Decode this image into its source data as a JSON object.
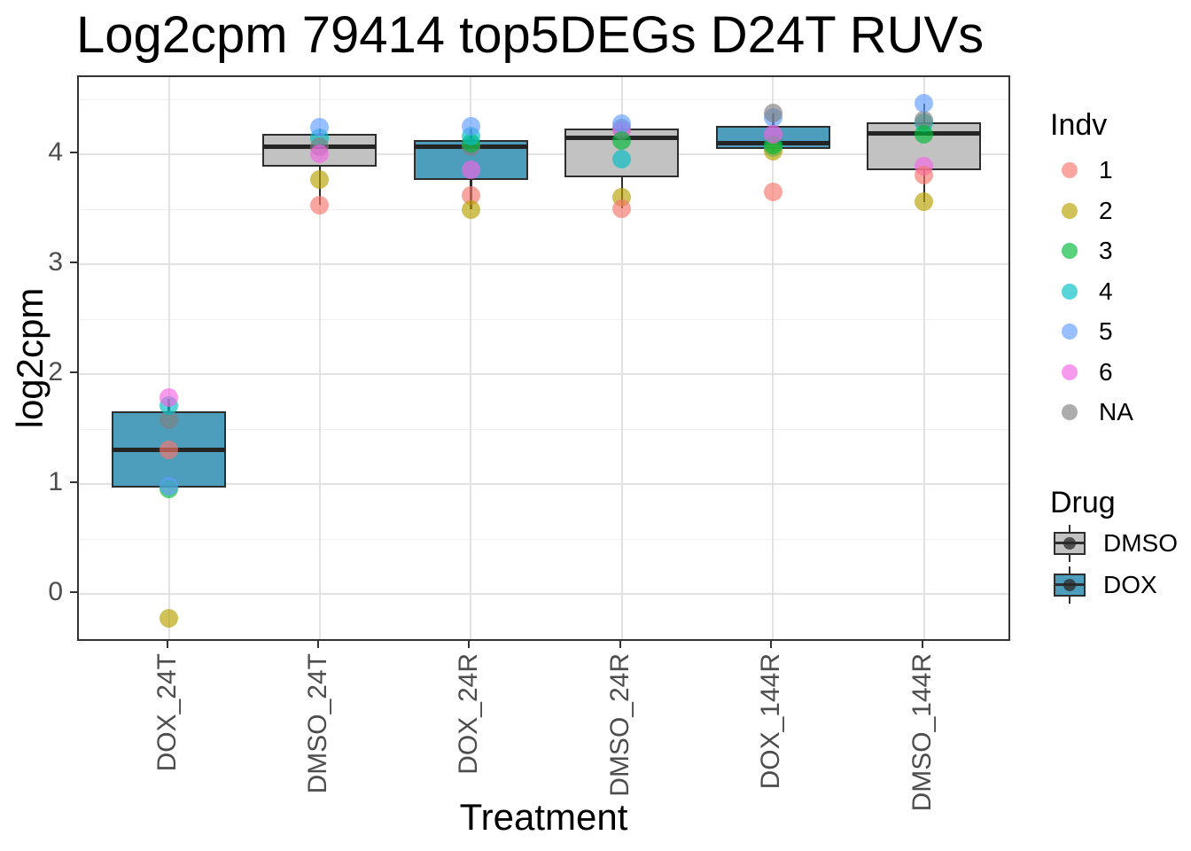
{
  "title": "Log2cpm 79414 top5DEGs D24T RUVs",
  "axes": {
    "x_title": "Treatment",
    "y_title": "log2cpm",
    "y_ticks": [
      0,
      1,
      2,
      3,
      4
    ],
    "y_minor_ticks": [
      0.5,
      1.5,
      2.5,
      3.5,
      4.5
    ],
    "y_range": [
      -0.44,
      4.7
    ],
    "categories": [
      "DOX_24T",
      "DMSO_24T",
      "DOX_24R",
      "DMSO_24R",
      "DOX_144R",
      "DMSO_144R"
    ]
  },
  "colors": {
    "dox_fill": "#4d9ebc",
    "dmso_fill": "#c2c2c2",
    "box_border": "#2e2e2e",
    "panel_border": "#333333",
    "grid_major": "#e2e2e2",
    "grid_minor": "#f0f0f0",
    "tick_label": "#4d4d4d",
    "indv": {
      "1": "rgba(248,118,109,0.65)",
      "2": "rgba(183,159,0,0.65)",
      "3": "rgba(0,186,56,0.65)",
      "4": "rgba(0,191,196,0.65)",
      "5": "rgba(97,156,255,0.65)",
      "6": "rgba(245,100,227,0.65)",
      "NA": "rgba(128,128,128,0.65)"
    }
  },
  "chart_data": {
    "type": "boxplot",
    "title": "Log2cpm 79414 top5DEGs D24T RUVs",
    "xlabel": "Treatment",
    "ylabel": "log2cpm",
    "ylim": [
      -0.44,
      4.7
    ],
    "grid": true,
    "legend_position": "right",
    "categories": [
      "DOX_24T",
      "DMSO_24T",
      "DOX_24R",
      "DMSO_24R",
      "DOX_144R",
      "DMSO_144R"
    ],
    "groups": [
      {
        "category": "DOX_24T",
        "drug": "DOX",
        "q1": 0.97,
        "median": 1.31,
        "q3": 1.66,
        "whisker_low": null,
        "whisker_high": 1.78,
        "points": [
          {
            "indv": "NA",
            "value": 1.59
          },
          {
            "indv": "4",
            "value": 1.72
          },
          {
            "indv": "6",
            "value": 1.79
          },
          {
            "indv": "3",
            "value": 0.96
          },
          {
            "indv": "5",
            "value": 0.98
          },
          {
            "indv": "1",
            "value": 1.31
          },
          {
            "indv": "2",
            "value": -0.22
          }
        ]
      },
      {
        "category": "DMSO_24T",
        "drug": "DMSO",
        "q1": 3.89,
        "median": 4.07,
        "q3": 4.19,
        "whisker_low": 3.54,
        "whisker_high": 4.24,
        "points": [
          {
            "indv": "4",
            "value": 4.15
          },
          {
            "indv": "5",
            "value": 4.25
          },
          {
            "indv": "NA",
            "value": 4.07
          },
          {
            "indv": "6",
            "value": 4.01
          },
          {
            "indv": "2",
            "value": 3.77
          },
          {
            "indv": "1",
            "value": 3.54
          }
        ]
      },
      {
        "category": "DOX_24R",
        "drug": "DOX",
        "q1": 3.77,
        "median": 4.07,
        "q3": 4.13,
        "whisker_low": 3.5,
        "whisker_high": 4.24,
        "points": [
          {
            "indv": "NA",
            "value": 4.07
          },
          {
            "indv": "3",
            "value": 4.1
          },
          {
            "indv": "4",
            "value": 4.17
          },
          {
            "indv": "5",
            "value": 4.26
          },
          {
            "indv": "6",
            "value": 3.86
          },
          {
            "indv": "1",
            "value": 3.63
          },
          {
            "indv": "2",
            "value": 3.5
          }
        ]
      },
      {
        "category": "DMSO_24R",
        "drug": "DMSO",
        "q1": 3.79,
        "median": 4.15,
        "q3": 4.24,
        "whisker_low": 3.51,
        "whisker_high": 4.27,
        "points": [
          {
            "indv": "NA",
            "value": 4.24
          },
          {
            "indv": "6",
            "value": 4.22
          },
          {
            "indv": "5",
            "value": 4.28
          },
          {
            "indv": "3",
            "value": 4.13
          },
          {
            "indv": "4",
            "value": 3.96
          },
          {
            "indv": "2",
            "value": 3.61
          },
          {
            "indv": "1",
            "value": 3.51
          }
        ]
      },
      {
        "category": "DOX_144R",
        "drug": "DOX",
        "q1": 4.05,
        "median": 4.1,
        "q3": 4.26,
        "whisker_low": 4.03,
        "whisker_high": 4.37,
        "points": [
          {
            "indv": "5",
            "value": 4.34
          },
          {
            "indv": "NA",
            "value": 4.38
          },
          {
            "indv": "4",
            "value": 4.06
          },
          {
            "indv": "2",
            "value": 4.03
          },
          {
            "indv": "3",
            "value": 4.09
          },
          {
            "indv": "6",
            "value": 4.18
          },
          {
            "indv": "1",
            "value": 3.66
          }
        ]
      },
      {
        "category": "DMSO_144R",
        "drug": "DMSO",
        "q1": 3.86,
        "median": 4.19,
        "q3": 4.29,
        "whisker_low": 3.57,
        "whisker_high": 4.46,
        "points": [
          {
            "indv": "4",
            "value": 4.29
          },
          {
            "indv": "NA",
            "value": 4.31
          },
          {
            "indv": "5",
            "value": 4.47
          },
          {
            "indv": "3",
            "value": 4.18
          },
          {
            "indv": "6",
            "value": 3.89
          },
          {
            "indv": "1",
            "value": 3.81
          },
          {
            "indv": "2",
            "value": 3.57
          }
        ]
      }
    ]
  },
  "legend": {
    "indv": {
      "title": "Indv",
      "items": [
        {
          "label": "1",
          "color": "rgba(248,118,109,0.65)"
        },
        {
          "label": "2",
          "color": "rgba(183,159,0,0.65)"
        },
        {
          "label": "3",
          "color": "rgba(0,186,56,0.65)"
        },
        {
          "label": "4",
          "color": "rgba(0,191,196,0.65)"
        },
        {
          "label": "5",
          "color": "rgba(97,156,255,0.65)"
        },
        {
          "label": "6",
          "color": "rgba(245,100,227,0.65)"
        },
        {
          "label": "NA",
          "color": "rgba(128,128,128,0.65)"
        }
      ]
    },
    "drug": {
      "title": "Drug",
      "items": [
        {
          "label": "DMSO",
          "fill": "#c2c2c2"
        },
        {
          "label": "DOX",
          "fill": "#4d9ebc"
        }
      ]
    }
  }
}
